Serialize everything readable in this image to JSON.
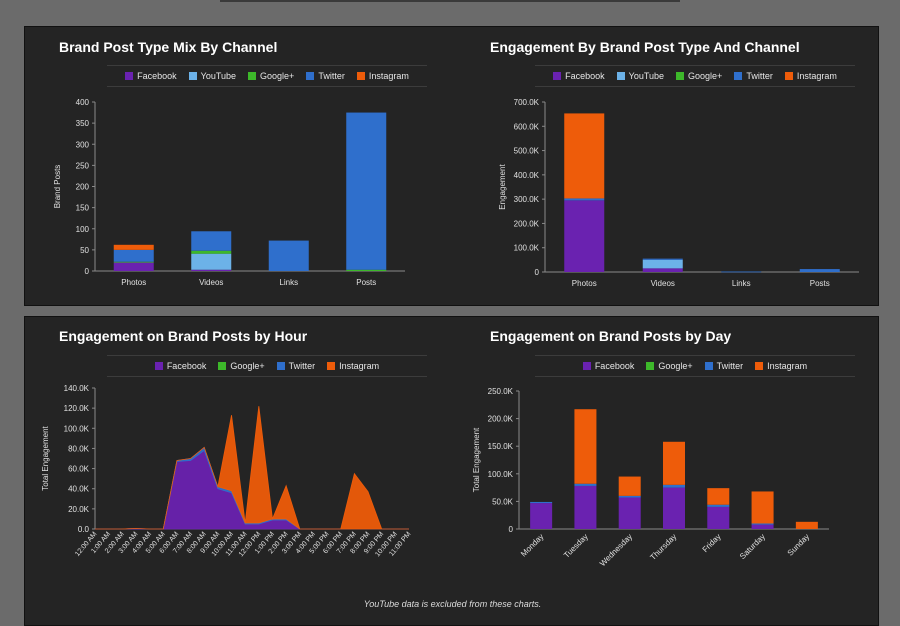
{
  "colors": {
    "Facebook": "#6a22b0",
    "YouTube": "#6cb2e8",
    "Google+": "#3db82a",
    "Twitter": "#2f6fcc",
    "Instagram": "#ee5c0a"
  },
  "footnote": "YouTube data is excluded from these charts.",
  "chart_data": [
    {
      "type": "bar",
      "stacked": true,
      "title": "Brand Post Type Mix By Channel",
      "xlabel": "",
      "ylabel": "Brand Posts",
      "ylim": [
        0,
        400
      ],
      "yticks": [
        0,
        50,
        100,
        150,
        200,
        250,
        300,
        350,
        400
      ],
      "ytick_labels": [
        "0",
        "50",
        "100",
        "150",
        "200",
        "250",
        "300",
        "350",
        "400"
      ],
      "legend": [
        "Facebook",
        "YouTube",
        "Google+",
        "Twitter",
        "Instagram"
      ],
      "legend_position": "top",
      "categories": [
        "Photos",
        "Videos",
        "Links",
        "Posts"
      ],
      "series": [
        {
          "name": "Facebook",
          "values": [
            20,
            3,
            0,
            0
          ]
        },
        {
          "name": "YouTube",
          "values": [
            0,
            38,
            0,
            0
          ]
        },
        {
          "name": "Google+",
          "values": [
            2,
            7,
            0,
            3
          ]
        },
        {
          "name": "Twitter",
          "values": [
            28,
            46,
            72,
            372
          ]
        },
        {
          "name": "Instagram",
          "values": [
            12,
            0,
            0,
            0
          ]
        }
      ]
    },
    {
      "type": "bar",
      "stacked": true,
      "title": "Engagement By Brand Post Type And Channel",
      "xlabel": "",
      "ylabel": "Engagement",
      "ylim": [
        0,
        700000
      ],
      "yticks": [
        0,
        100000,
        200000,
        300000,
        400000,
        500000,
        600000,
        700000
      ],
      "ytick_labels": [
        "0",
        "100.0K",
        "200.0K",
        "300.0K",
        "400.0K",
        "500.0K",
        "600.0K",
        "700.0K"
      ],
      "legend": [
        "Facebook",
        "YouTube",
        "Google+",
        "Twitter",
        "Instagram"
      ],
      "legend_position": "top",
      "categories": [
        "Photos",
        "Videos",
        "Links",
        "Posts"
      ],
      "series": [
        {
          "name": "Facebook",
          "values": [
            295000,
            15000,
            0,
            0
          ]
        },
        {
          "name": "YouTube",
          "values": [
            0,
            35000,
            0,
            0
          ]
        },
        {
          "name": "Google+",
          "values": [
            0,
            0,
            0,
            0
          ]
        },
        {
          "name": "Twitter",
          "values": [
            8000,
            5000,
            2000,
            12000
          ]
        },
        {
          "name": "Instagram",
          "values": [
            350000,
            0,
            0,
            0
          ]
        }
      ]
    },
    {
      "type": "area",
      "stacked": true,
      "title": "Engagement on Brand Posts by Hour",
      "xlabel": "",
      "ylabel": "Total Engagement",
      "ylim": [
        0,
        140000
      ],
      "yticks": [
        0,
        20000,
        40000,
        60000,
        80000,
        100000,
        120000,
        140000
      ],
      "ytick_labels": [
        "0.0",
        "20.0K",
        "40.0K",
        "60.0K",
        "80.0K",
        "100.0K",
        "120.0K",
        "140.0K"
      ],
      "legend": [
        "Facebook",
        "Google+",
        "Twitter",
        "Instagram"
      ],
      "legend_position": "top",
      "x": [
        "12:00 AM",
        "1:00 AM",
        "2:00 AM",
        "3:00 AM",
        "4:00 AM",
        "5:00 AM",
        "6:00 AM",
        "7:00 AM",
        "8:00 AM",
        "9:00 AM",
        "10:00 AM",
        "11:00 AM",
        "12:00 PM",
        "1:00 PM",
        "2:00 PM",
        "3:00 PM",
        "4:00 PM",
        "5:00 PM",
        "6:00 PM",
        "7:00 PM",
        "8:00 PM",
        "9:00 PM",
        "10:00 PM",
        "11:00 PM"
      ],
      "series": [
        {
          "name": "Facebook",
          "values": [
            0,
            0,
            0,
            500,
            0,
            0,
            67000,
            68000,
            78000,
            40000,
            36000,
            5000,
            5000,
            9000,
            9000,
            0,
            0,
            0,
            0,
            0,
            0,
            0,
            0,
            0
          ]
        },
        {
          "name": "Google+",
          "values": [
            0,
            0,
            0,
            0,
            0,
            0,
            0,
            0,
            0,
            0,
            0,
            0,
            0,
            0,
            0,
            0,
            0,
            0,
            0,
            0,
            0,
            0,
            0,
            0
          ]
        },
        {
          "name": "Twitter",
          "values": [
            0,
            0,
            0,
            0,
            0,
            0,
            1000,
            2000,
            3000,
            2000,
            2000,
            1000,
            1000,
            1000,
            1000,
            0,
            0,
            0,
            0,
            0,
            0,
            0,
            0,
            0
          ]
        },
        {
          "name": "Instagram",
          "values": [
            0,
            0,
            0,
            0,
            0,
            0,
            0,
            0,
            0,
            0,
            75000,
            0,
            116000,
            0,
            33000,
            0,
            0,
            0,
            0,
            55000,
            37000,
            0,
            0,
            0
          ]
        }
      ]
    },
    {
      "type": "bar",
      "stacked": true,
      "title": "Engagement on Brand Posts by Day",
      "xlabel": "",
      "ylabel": "Total Engagement",
      "ylim": [
        0,
        250000
      ],
      "yticks": [
        0,
        50000,
        100000,
        150000,
        200000,
        250000
      ],
      "ytick_labels": [
        "0",
        "50.0K",
        "100.0K",
        "150.0K",
        "200.0K",
        "250.0K"
      ],
      "legend": [
        "Facebook",
        "Google+",
        "Twitter",
        "Instagram"
      ],
      "legend_position": "top",
      "categories": [
        "Monday",
        "Tuesday",
        "Wednesday",
        "Thursday",
        "Friday",
        "Saturday",
        "Sunday"
      ],
      "series": [
        {
          "name": "Facebook",
          "values": [
            47000,
            78000,
            57000,
            75000,
            40000,
            8000,
            0
          ]
        },
        {
          "name": "Google+",
          "values": [
            0,
            0,
            0,
            0,
            0,
            0,
            0
          ]
        },
        {
          "name": "Twitter",
          "values": [
            2000,
            4000,
            3000,
            5000,
            4000,
            2000,
            0
          ]
        },
        {
          "name": "Instagram",
          "values": [
            0,
            135000,
            35000,
            78000,
            30000,
            58000,
            13000
          ]
        }
      ]
    }
  ]
}
